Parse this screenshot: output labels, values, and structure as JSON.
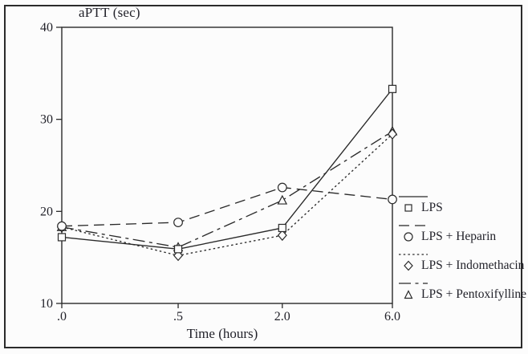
{
  "figure": {
    "title": "aPTT (sec)",
    "x_axis_title": "Time (hours)"
  },
  "chart_data": {
    "type": "line",
    "title": "aPTT (sec)",
    "xlabel": "Time (hours)",
    "ylabel": "aPTT (sec)",
    "categories": [
      ".0",
      ".5",
      "2.0",
      "6.0"
    ],
    "x_values_hours": [
      0,
      0.5,
      2.0,
      6.0
    ],
    "ylim": [
      10,
      40
    ],
    "y_ticks": [
      "10",
      "20",
      "30",
      "40"
    ],
    "grid": false,
    "legend_position": "right",
    "series": [
      {
        "name": "LPS",
        "marker": "square",
        "line_style": "solid",
        "values": [
          17.2,
          15.9,
          18.2,
          33.3
        ]
      },
      {
        "name": "LPS + Heparin",
        "marker": "circle",
        "line_style": "long-dash",
        "values": [
          18.4,
          18.8,
          22.6,
          21.3
        ]
      },
      {
        "name": "LPS + Indomethacin",
        "marker": "diamond",
        "line_style": "dotted",
        "values": [
          18.3,
          15.2,
          17.4,
          28.4
        ]
      },
      {
        "name": "LPS + Pentoxifylline",
        "marker": "triangle",
        "line_style": "dash-dot",
        "values": [
          18.3,
          16.1,
          21.2,
          28.7
        ]
      }
    ],
    "colors": {
      "line": "#2a2a2a",
      "text": "#22222a",
      "background": "#fcfcfc",
      "border": "#2b2b2b"
    }
  }
}
